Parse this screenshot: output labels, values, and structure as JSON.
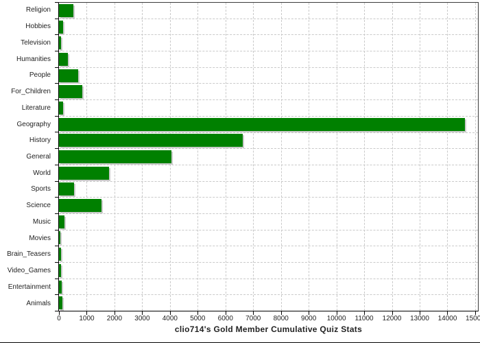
{
  "chart_data": {
    "type": "bar",
    "orientation": "horizontal",
    "title": "clio714's Gold Member Cumulative Quiz Stats",
    "categories": [
      "Religion",
      "Hobbies",
      "Television",
      "Humanities",
      "People",
      "For_Children",
      "Literature",
      "Geography",
      "History",
      "General",
      "World",
      "Sports",
      "Science",
      "Music",
      "Movies",
      "Brain_Teasers",
      "Video_Games",
      "Entertainment",
      "Animals"
    ],
    "values": [
      520,
      140,
      85,
      330,
      680,
      830,
      145,
      14640,
      6620,
      4050,
      1800,
      550,
      1530,
      205,
      60,
      80,
      70,
      100,
      125
    ],
    "xlabel": "",
    "ylabel": "",
    "xlim": [
      0,
      15100
    ],
    "x_ticks": [
      0,
      1000,
      2000,
      3000,
      4000,
      5000,
      6000,
      7000,
      8000,
      9000,
      10000,
      11000,
      12000,
      13000,
      14000,
      15000
    ],
    "grid": "dashed",
    "legend": "none",
    "colors": {
      "bar": "#008000",
      "bar_shadow": "#cbcbcb",
      "grid": "#c9c9c9",
      "axis": "#000000",
      "outline": "#3a3a3a",
      "text": "#222222"
    }
  }
}
